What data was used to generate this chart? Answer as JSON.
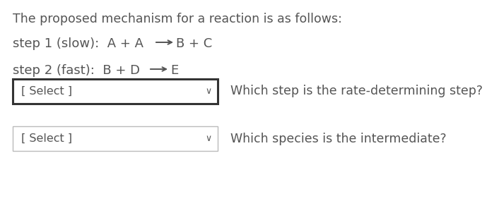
{
  "background_color": "#ffffff",
  "title_text": "The proposed mechanism for a reaction is as follows:",
  "text_color": "#555555",
  "select_label": "[ Select ]",
  "chevron": "∨",
  "q1_text": "Which step is the rate-determining step?",
  "q2_text": "Which species is the intermediate?",
  "box1_border_color": "#333333",
  "box2_border_color": "#bbbbbb",
  "font_size_title": 12.5,
  "font_size_steps": 13.0,
  "font_size_select": 11.5,
  "font_size_q": 12.5,
  "step1_prefix": "step 1 (slow):  A + A ",
  "step1_suffix": "B + C",
  "step2_prefix": "step 2 (fast):  B + D  ",
  "step2_suffix": "E"
}
